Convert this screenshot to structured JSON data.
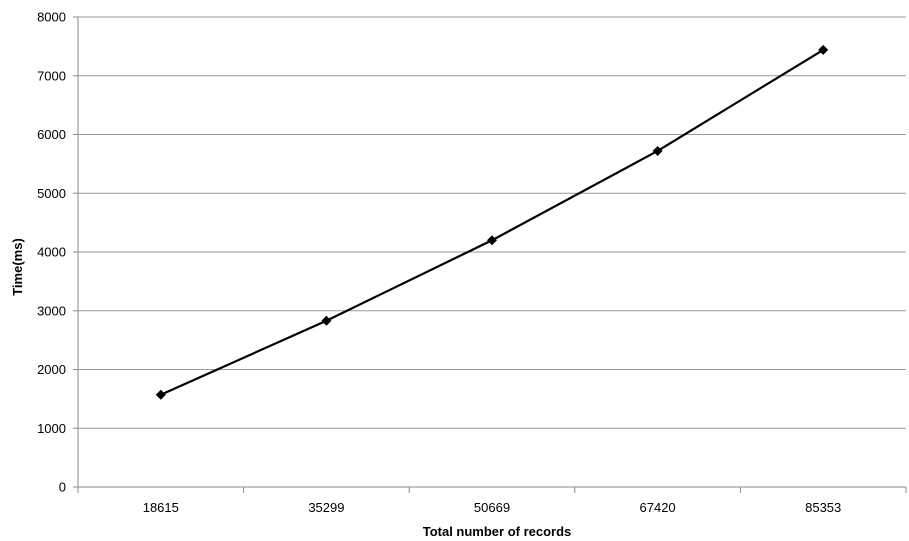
{
  "chart_data": {
    "type": "line",
    "title": "",
    "xlabel": "Total number of records",
    "ylabel": "Time(ms)",
    "categories": [
      "18615",
      "35299",
      "50669",
      "67420",
      "85353"
    ],
    "series": [
      {
        "values": [
          1570,
          2830,
          4200,
          5720,
          7440
        ],
        "color": "#000000",
        "marker": "diamond"
      }
    ],
    "ylim": [
      0,
      8000
    ],
    "yticks": [
      0,
      1000,
      2000,
      3000,
      4000,
      5000,
      6000,
      7000,
      8000
    ],
    "ytick_labels": [
      "0",
      "1000",
      "2000",
      "3000",
      "4000",
      "5000",
      "6000",
      "7000",
      "8000"
    ],
    "grid": true,
    "legend": "none",
    "colors": {
      "gridline": "#9a9a9a",
      "axis": "#8a8a8a",
      "series": "#000000"
    }
  }
}
